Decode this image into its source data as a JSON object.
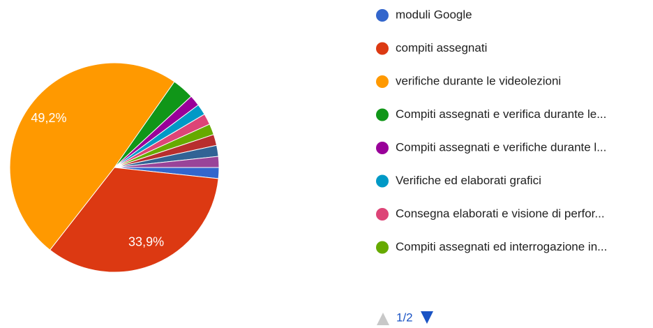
{
  "chart_data": {
    "type": "pie",
    "categories": [
      "moduli Google",
      "compiti assegnati",
      "verifiche durante le videolezioni",
      "Compiti assegnati e verifica durante le...",
      "Compiti assegnati e verifiche durante l...",
      "Verifiche ed elaborati grafici",
      "Consegna elaborati e visione di perfor...",
      "Compiti assegnati ed interrogazione in...",
      null,
      null,
      null
    ],
    "values": [
      1.7,
      33.9,
      49.2,
      3.4,
      1.7,
      1.7,
      1.7,
      1.7,
      1.7,
      1.7,
      1.7
    ],
    "value_labels": [
      null,
      "33,9%",
      "49,2%",
      null,
      null,
      null,
      null,
      null,
      null,
      null,
      null
    ],
    "colors": [
      "#3366cc",
      "#dc3912",
      "#ff9900",
      "#109618",
      "#990099",
      "#0099c6",
      "#dd4477",
      "#66aa00",
      "#b82e2e",
      "#316395",
      "#994499"
    ],
    "pager": "1/2"
  }
}
